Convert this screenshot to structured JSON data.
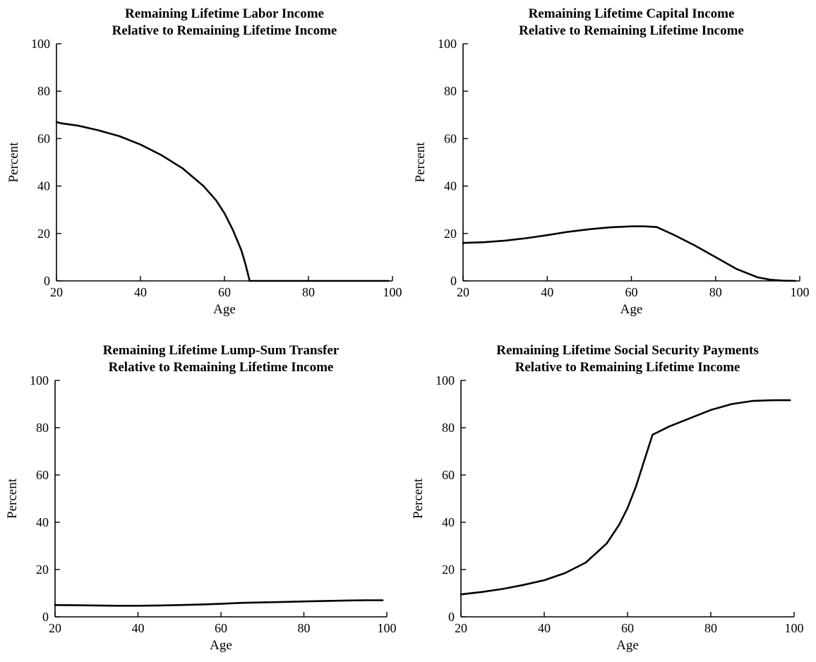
{
  "chart_data": [
    {
      "type": "line",
      "title": [
        "Remaining Lifetime Labor Income",
        "Relative to Remaining Lifetime Income"
      ],
      "xlabel": "Age",
      "ylabel": "Percent",
      "xlim": [
        20,
        100
      ],
      "ylim": [
        0,
        100
      ],
      "xticks": [
        20,
        40,
        60,
        80,
        100
      ],
      "yticks": [
        0,
        20,
        40,
        60,
        80,
        100
      ],
      "grid": false,
      "series": [
        {
          "color": "#000000",
          "x": [
            20,
            21,
            25,
            30,
            35,
            40,
            45,
            50,
            55,
            58,
            60,
            62,
            64,
            65,
            66,
            70,
            75,
            80,
            85,
            90,
            95,
            99
          ],
          "y": [
            67,
            66.5,
            65.5,
            63.5,
            61,
            57.5,
            53,
            47.5,
            40,
            34,
            28.5,
            21.5,
            13,
            7,
            0,
            0,
            0,
            0,
            0,
            0,
            0,
            0
          ]
        }
      ]
    },
    {
      "type": "line",
      "title": [
        "Remaining Lifetime Capital Income",
        "Relative to Remaining Lifetime Income"
      ],
      "xlabel": "Age",
      "ylabel": "Percent",
      "xlim": [
        20,
        100
      ],
      "ylim": [
        0,
        100
      ],
      "xticks": [
        20,
        40,
        60,
        80,
        100
      ],
      "yticks": [
        0,
        20,
        40,
        60,
        80,
        100
      ],
      "grid": false,
      "series": [
        {
          "color": "#000000",
          "x": [
            20,
            25,
            30,
            35,
            40,
            45,
            50,
            55,
            60,
            63,
            66,
            70,
            75,
            80,
            85,
            90,
            93,
            96,
            99
          ],
          "y": [
            16,
            16.3,
            17,
            18,
            19.3,
            20.7,
            21.8,
            22.6,
            23,
            23,
            22.7,
            19.5,
            15,
            10,
            5,
            1.5,
            0.5,
            0.1,
            0
          ]
        }
      ]
    },
    {
      "type": "line",
      "title": [
        "Remaining Lifetime Lump-Sum Transfer",
        "Relative to Remaining Lifetime Income"
      ],
      "xlabel": "Age",
      "ylabel": "Percent",
      "xlim": [
        20,
        100
      ],
      "ylim": [
        0,
        100
      ],
      "xticks": [
        20,
        40,
        60,
        80,
        100
      ],
      "yticks": [
        0,
        20,
        40,
        60,
        80,
        100
      ],
      "grid": false,
      "series": [
        {
          "color": "#000000",
          "x": [
            20,
            25,
            30,
            35,
            40,
            45,
            50,
            55,
            60,
            65,
            70,
            75,
            80,
            85,
            90,
            95,
            99
          ],
          "y": [
            5,
            4.9,
            4.8,
            4.7,
            4.7,
            4.8,
            5,
            5.2,
            5.5,
            5.9,
            6.1,
            6.3,
            6.5,
            6.7,
            6.9,
            7,
            7
          ]
        }
      ]
    },
    {
      "type": "line",
      "title": [
        "Remaining Lifetime Social Security Payments",
        "Relative to Remaining Lifetime Income"
      ],
      "xlabel": "Age",
      "ylabel": "Percent",
      "xlim": [
        20,
        100
      ],
      "ylim": [
        0,
        100
      ],
      "xticks": [
        20,
        40,
        60,
        80,
        100
      ],
      "yticks": [
        0,
        20,
        40,
        60,
        80,
        100
      ],
      "grid": false,
      "series": [
        {
          "color": "#000000",
          "x": [
            20,
            25,
            30,
            35,
            40,
            45,
            50,
            55,
            58,
            60,
            62,
            64,
            65,
            66,
            70,
            75,
            80,
            85,
            90,
            95,
            99
          ],
          "y": [
            9.5,
            10.5,
            11.8,
            13.5,
            15.5,
            18.5,
            23,
            31,
            39,
            46,
            55,
            66,
            71.5,
            77,
            80.5,
            84,
            87.5,
            90,
            91.3,
            91.6,
            91.6
          ]
        }
      ]
    }
  ]
}
